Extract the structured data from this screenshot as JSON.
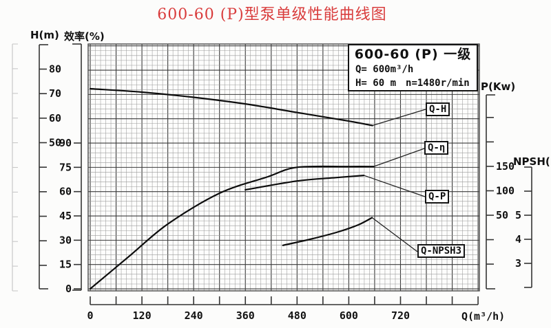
{
  "title": {
    "text": "600-60 (P)型泵单级性能曲线图",
    "color": "#d93c3c"
  },
  "info_box": {
    "line1": "600-60 (P) 一级",
    "line2": "Q= 600m³/h",
    "line3a": "H= 60 m",
    "line3b": "n=1480r/min"
  },
  "axes": {
    "head": {
      "title": "H(m)",
      "labeled_ticks": [
        80,
        70,
        60,
        50
      ],
      "unlabeled_tick_count": 5
    },
    "efficiency": {
      "title": "效率(%)",
      "ticks": [
        90,
        75,
        60,
        45,
        30,
        15,
        0
      ]
    },
    "power": {
      "title": "P(Kw)",
      "labeled_ticks": [
        150,
        100,
        50
      ],
      "unlabeled_above": 2,
      "unlabeled_below": 2
    },
    "npsh": {
      "title": "NPSH(m)",
      "labeled_ticks": [
        5,
        4,
        3
      ],
      "unlabeled_above": 1
    },
    "flow": {
      "title": "Q(m³/h)",
      "ticks": [
        0,
        120,
        240,
        360,
        480,
        600,
        720
      ]
    }
  },
  "curve_labels": {
    "qh": "Q-H",
    "qe": "Q-η",
    "qp": "Q-P",
    "qnpsh": "Q-NPSH3"
  },
  "chart_data": {
    "type": "line",
    "title": "600-60 (P)型泵单级性能曲线图",
    "subtitle": "600-60 (P) 一级  Q=600m³/h  H=60m  n=1480r/min",
    "x_axis": {
      "label": "Q(m³/h)",
      "range": [
        0,
        900
      ],
      "major_tick_step": 120,
      "minor_tick_step": 60
    },
    "y_axes": [
      {
        "name": "H(m)",
        "visible_ticks": [
          50,
          60,
          70,
          80
        ]
      },
      {
        "name": "效率(%)",
        "visible_ticks": [
          0,
          15,
          30,
          45,
          60,
          75,
          90
        ]
      },
      {
        "name": "P(Kw)",
        "visible_ticks": [
          50,
          100,
          150
        ]
      },
      {
        "name": "NPSH(m)",
        "visible_ticks": [
          3,
          4,
          5
        ]
      }
    ],
    "grid": "fine mesh, on",
    "legend_position": "labels in boxes at right of plot with leader lines",
    "series": [
      {
        "name": "Q-H",
        "y_axis": "H(m)",
        "points": [
          [
            0,
            72
          ],
          [
            120,
            70.6
          ],
          [
            240,
            68.5
          ],
          [
            360,
            65.8
          ],
          [
            480,
            62.3
          ],
          [
            600,
            58.8
          ],
          [
            655,
            57
          ]
        ]
      },
      {
        "name": "Q-η",
        "y_axis": "效率(%)",
        "points": [
          [
            0,
            0
          ],
          [
            90,
            20
          ],
          [
            180,
            40
          ],
          [
            300,
            59
          ],
          [
            410,
            69
          ],
          [
            480,
            75
          ],
          [
            600,
            75.5
          ],
          [
            658,
            75.5
          ]
        ]
      },
      {
        "name": "Q-P",
        "y_axis": "P(Kw)",
        "points": [
          [
            360,
            102
          ],
          [
            480,
            120
          ],
          [
            570,
            127
          ],
          [
            635,
            131.5
          ]
        ]
      },
      {
        "name": "Q-NPSH3",
        "y_axis": "NPSH(m)",
        "points": [
          [
            447,
            3.75
          ],
          [
            510,
            4.0
          ],
          [
            574,
            4.3
          ],
          [
            622,
            4.6
          ],
          [
            654,
            4.9
          ]
        ]
      }
    ]
  }
}
